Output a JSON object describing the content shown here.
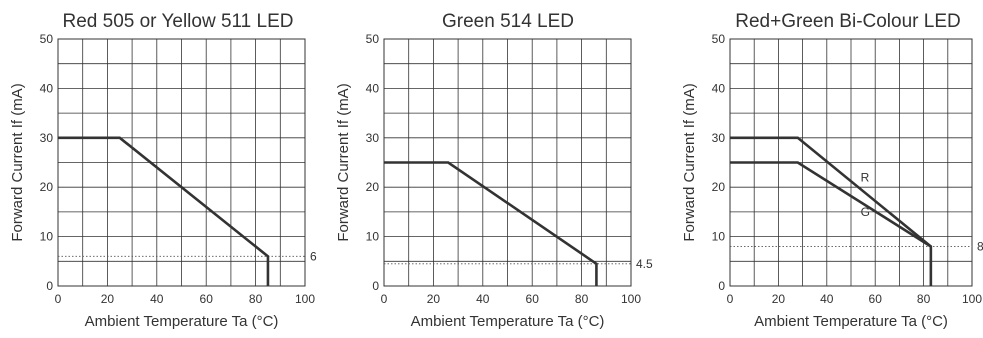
{
  "chart_data": [
    {
      "type": "line",
      "title": "Red 505 or Yellow 511 LED",
      "xlabel": "Ambient Temperature Ta (°C)",
      "ylabel": "Forward Current If (mA)",
      "xlim": [
        0,
        100
      ],
      "ylim": [
        0,
        50
      ],
      "xticks": [
        0,
        20,
        40,
        60,
        80,
        100
      ],
      "yticks": [
        0,
        10,
        20,
        30,
        40,
        50
      ],
      "grid": true,
      "series": [
        {
          "label": "",
          "x": [
            0,
            25,
            85,
            85
          ],
          "y": [
            30,
            30,
            6,
            0
          ]
        }
      ],
      "annotations": [
        {
          "text": "6",
          "y": 6
        }
      ]
    },
    {
      "type": "line",
      "title": "Green 514 LED",
      "xlabel": "Ambient Temperature Ta (°C)",
      "ylabel": "Forward Current If (mA)",
      "xlim": [
        0,
        100
      ],
      "ylim": [
        0,
        50
      ],
      "xticks": [
        0,
        20,
        40,
        60,
        80,
        100
      ],
      "yticks": [
        0,
        10,
        20,
        30,
        40,
        50
      ],
      "grid": true,
      "series": [
        {
          "label": "",
          "x": [
            0,
            26,
            86,
            86
          ],
          "y": [
            25,
            25,
            4.5,
            0
          ]
        }
      ],
      "annotations": [
        {
          "text": "4.5",
          "y": 4.5
        }
      ]
    },
    {
      "type": "line",
      "title": "Red+Green Bi-Colour LED",
      "xlabel": "Ambient Temperature Ta (°C)",
      "ylabel": "Forward Current If (mA)",
      "xlim": [
        0,
        100
      ],
      "ylim": [
        0,
        50
      ],
      "xticks": [
        0,
        20,
        40,
        60,
        80,
        100
      ],
      "yticks": [
        0,
        10,
        20,
        30,
        40,
        50
      ],
      "grid": true,
      "series": [
        {
          "label": "R",
          "x": [
            0,
            28,
            83,
            83
          ],
          "y": [
            30,
            30,
            8,
            0
          ],
          "label_at": [
            54,
            22
          ]
        },
        {
          "label": "G",
          "x": [
            0,
            28,
            83
          ],
          "y": [
            25,
            25,
            8
          ],
          "label_at": [
            54,
            15
          ]
        }
      ],
      "annotations": [
        {
          "text": "8",
          "y": 8
        }
      ]
    }
  ]
}
